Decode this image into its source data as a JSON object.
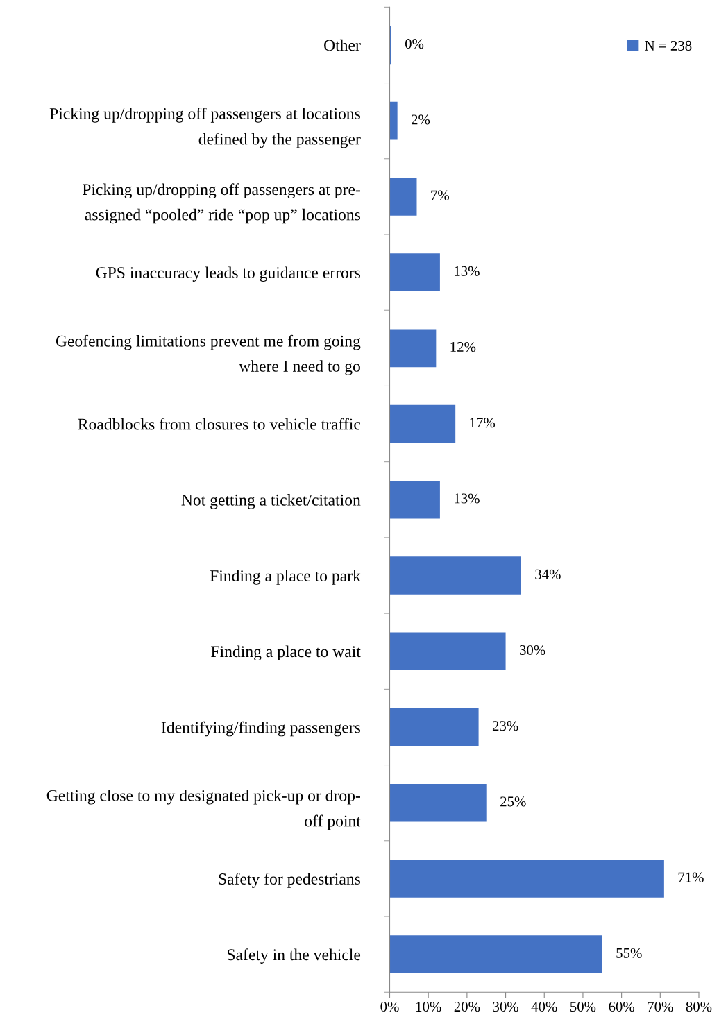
{
  "chart_data": {
    "type": "bar",
    "orientation": "horizontal",
    "categories": [
      "Other",
      "Picking up/dropping off passengers at locations\ndefined by the passenger",
      "Picking up/dropping off passengers at pre-\nassigned “pooled” ride “pop up” locations",
      "GPS inaccuracy leads to guidance errors",
      "Geofencing limitations prevent me from going\nwhere I need to go",
      "Roadblocks from closures to vehicle traffic",
      "Not getting a ticket/citation",
      "Finding a place to park",
      "Finding a place to wait",
      "Identifying/finding passengers",
      "Getting close to my designated pick-up or drop-\noff point",
      "Safety for pedestrians",
      "Safety in the vehicle"
    ],
    "series": [
      {
        "name": "N = 238",
        "color": "#4472c4",
        "values": [
          0.4,
          2,
          7,
          13,
          12,
          17,
          13,
          34,
          30,
          23,
          25,
          71,
          55
        ],
        "value_labels": [
          "0%",
          "2%",
          "7%",
          "13%",
          "12%",
          "17%",
          "13%",
          "34%",
          "30%",
          "23%",
          "25%",
          "71%",
          "55%"
        ]
      }
    ],
    "xlim": [
      0,
      80
    ],
    "xticks": [
      {
        "value": 0,
        "label": "0%"
      },
      {
        "value": 10,
        "label": "10%"
      },
      {
        "value": 20,
        "label": "20%"
      },
      {
        "value": 30,
        "label": "30%"
      },
      {
        "value": 40,
        "label": "40%"
      },
      {
        "value": 50,
        "label": "50%"
      },
      {
        "value": 60,
        "label": "60%"
      },
      {
        "value": 70,
        "label": "70%"
      },
      {
        "value": 80,
        "label": "80%"
      }
    ],
    "legend": "top right",
    "grid": false
  }
}
